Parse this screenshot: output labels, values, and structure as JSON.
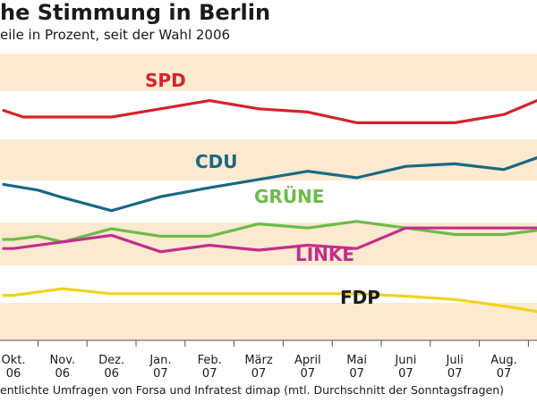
{
  "chart_data": {
    "type": "line",
    "title": "he Stimmung in Berlin",
    "subtitle": "eile in Prozent, seit der Wahl 2006",
    "footnote": "entlichte Umfragen von Forsa und Infratest dimap (mtl. Durchschnitt der Sonntagsfragen)",
    "x_months": [
      {
        "line1": "Okt.",
        "line2": "06"
      },
      {
        "line1": "Nov.",
        "line2": "06"
      },
      {
        "line1": "Dez.",
        "line2": "06"
      },
      {
        "line1": "Jan.",
        "line2": "07"
      },
      {
        "line1": "Feb.",
        "line2": "07"
      },
      {
        "line1": "März",
        "line2": "07"
      },
      {
        "line1": "April",
        "line2": "07"
      },
      {
        "line1": "Mai",
        "line2": "07"
      },
      {
        "line1": "Juni",
        "line2": "07"
      },
      {
        "line1": "Juli",
        "line2": "07"
      },
      {
        "line1": "Aug.",
        "line2": "07"
      }
    ],
    "x_range": [
      -0.2,
      10.8
    ],
    "y_range": [
      4,
      34
    ],
    "grid": "horizontal bands",
    "series": [
      {
        "name": "SPD",
        "color": "#d5232a",
        "x": [
          -0.2,
          0.2,
          1.0,
          2.0,
          3.0,
          4.0,
          5.0,
          6.0,
          7.0,
          8.0,
          9.0,
          10.0,
          10.8
        ],
        "y": [
          31,
          30.2,
          30.2,
          30.2,
          31.2,
          32.2,
          31.2,
          30.8,
          29.5,
          29.5,
          29.5,
          30.5,
          32.5
        ]
      },
      {
        "name": "CDU",
        "color": "#1a6882",
        "x": [
          -0.2,
          0.5,
          1.0,
          2.0,
          3.0,
          4.0,
          5.0,
          6.0,
          7.0,
          8.0,
          9.0,
          10.0,
          10.8
        ],
        "y": [
          22,
          21.3,
          20.4,
          18.8,
          20.5,
          21.6,
          22.6,
          23.6,
          22.8,
          24.2,
          24.5,
          23.8,
          25.5
        ]
      },
      {
        "name": "GRÜNE",
        "color": "#6dbb49",
        "x": [
          -0.2,
          0.0,
          0.5,
          1.0,
          2.0,
          3.0,
          4.0,
          5.0,
          6.0,
          7.0,
          8.0,
          9.0,
          10.0,
          10.8
        ],
        "y": [
          15.3,
          15.3,
          15.7,
          15.0,
          16.6,
          15.7,
          15.7,
          17.2,
          16.7,
          17.5,
          16.7,
          15.9,
          15.9,
          16.5
        ]
      },
      {
        "name": "LINKE",
        "color": "#c42d8c",
        "x": [
          -0.2,
          0.0,
          1.0,
          2.0,
          3.0,
          4.0,
          5.0,
          6.0,
          7.0,
          8.0,
          9.0,
          10.0,
          10.8
        ],
        "y": [
          14.2,
          14.2,
          15.0,
          15.8,
          13.8,
          14.6,
          14.0,
          14.6,
          14.2,
          16.7,
          16.7,
          16.7,
          16.7
        ]
      },
      {
        "name": "FDP",
        "color": "#f2d31b",
        "x": [
          -0.2,
          0.0,
          1.0,
          2.0,
          3.0,
          4.0,
          5.0,
          6.0,
          7.0,
          8.0,
          9.0,
          10.0,
          10.8
        ],
        "y": [
          8.5,
          8.5,
          9.3,
          8.7,
          8.7,
          8.7,
          8.7,
          8.7,
          8.7,
          8.4,
          8.0,
          7.2,
          6.4
        ]
      }
    ]
  }
}
